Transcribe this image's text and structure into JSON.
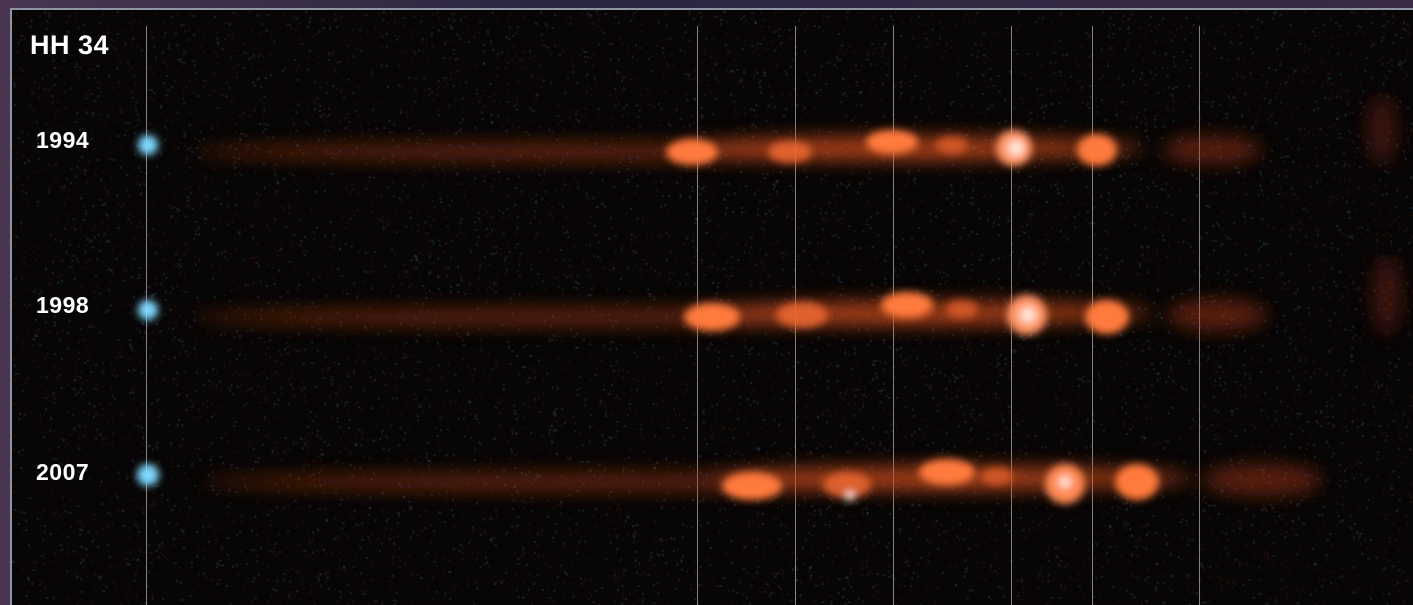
{
  "image": {
    "title": "HH 34",
    "epochs": [
      {
        "year": "1994"
      },
      {
        "year": "1998"
      },
      {
        "year": "2007"
      }
    ],
    "colors": {
      "background": "#070505",
      "source_glow": "#7fd8ff",
      "jet_emission": "#ff6a33",
      "knot_core": "#ffe6d8",
      "guide_line": "#e6e6eb",
      "frame_border": "#8d95a6"
    }
  }
}
